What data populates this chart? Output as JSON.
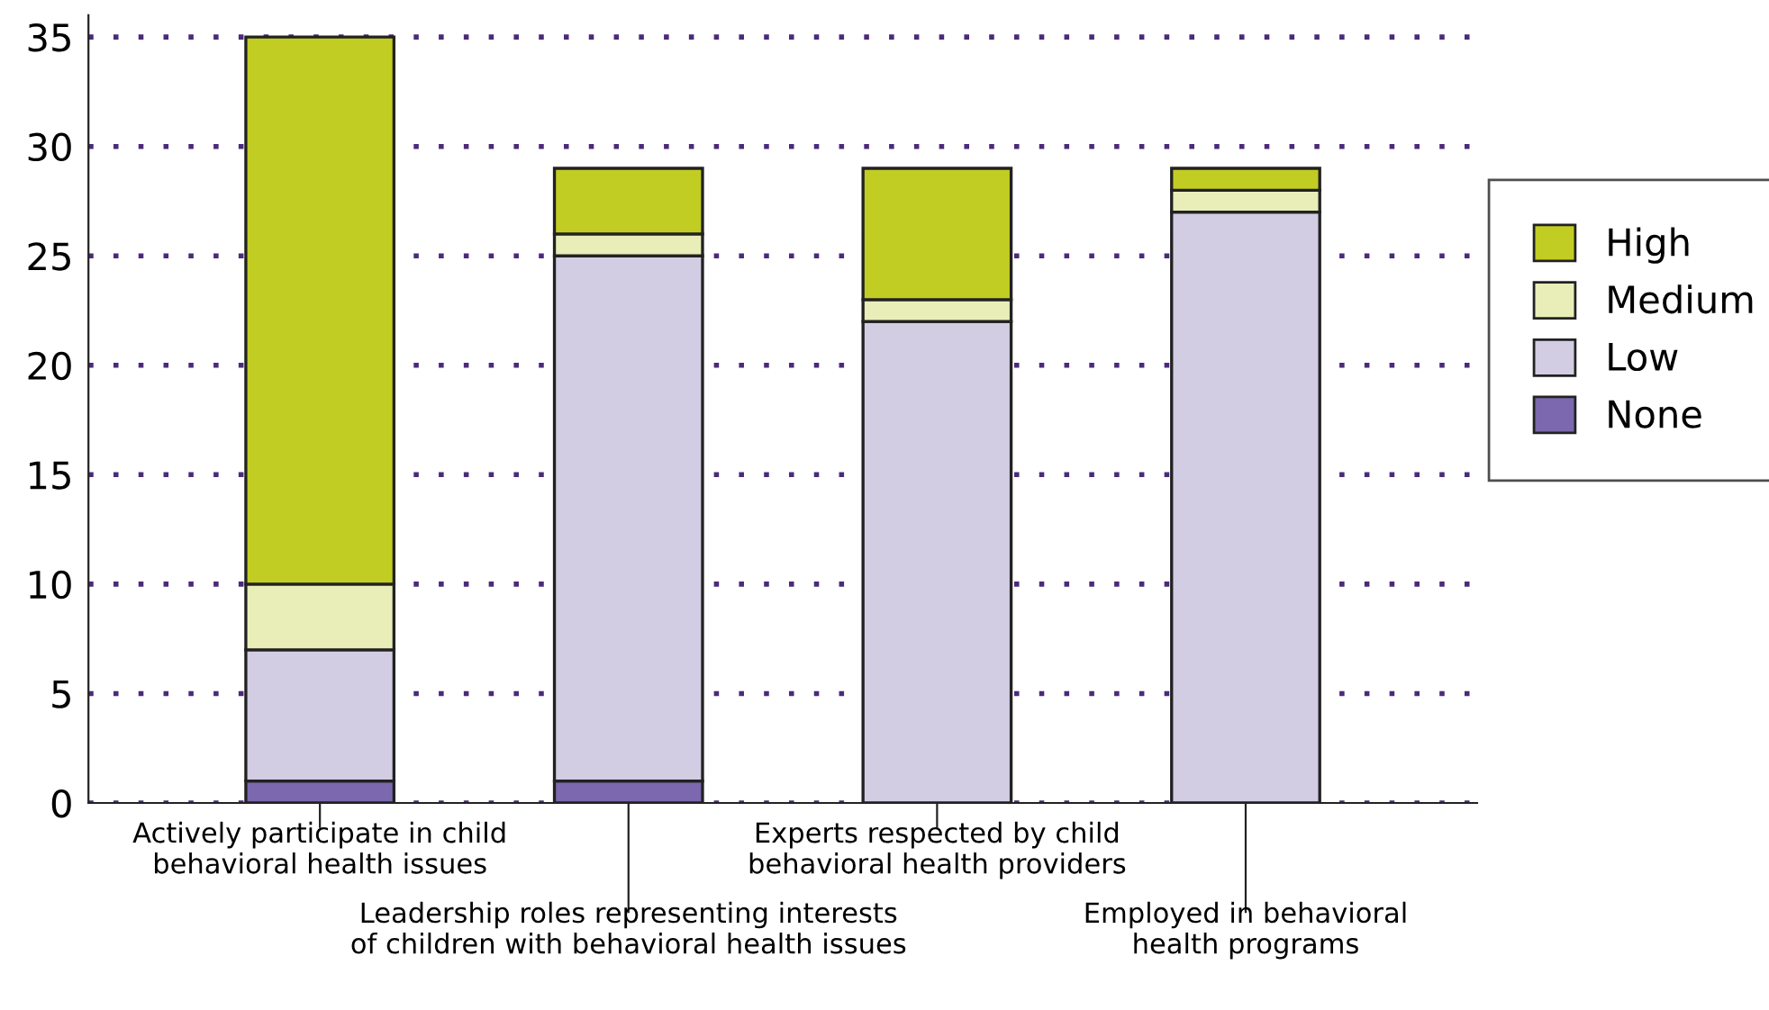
{
  "chart_data": {
    "type": "bar",
    "stacked": true,
    "categories": [
      "Actively participate in child\nbehavioral health issues",
      "Leadership roles representing interests\nof children with behavioral health issues",
      "Experts respected by child\nbehavioral health providers",
      "Employed in behavioral\nhealth programs"
    ],
    "series": [
      {
        "name": "None",
        "color": "#7b68ae",
        "values": [
          1,
          1,
          0,
          0
        ]
      },
      {
        "name": "Low",
        "color": "#d2cde3",
        "values": [
          6,
          24,
          22,
          27
        ]
      },
      {
        "name": "Medium",
        "color": "#e9eeb9",
        "values": [
          3,
          1,
          1,
          1
        ]
      },
      {
        "name": "High",
        "color": "#c2cd23",
        "values": [
          25,
          3,
          6,
          1
        ]
      }
    ],
    "ylim": [
      0,
      36
    ],
    "yticks": [
      0,
      5,
      10,
      15,
      20,
      25,
      30,
      35
    ],
    "grid": "y",
    "legend": "right"
  }
}
